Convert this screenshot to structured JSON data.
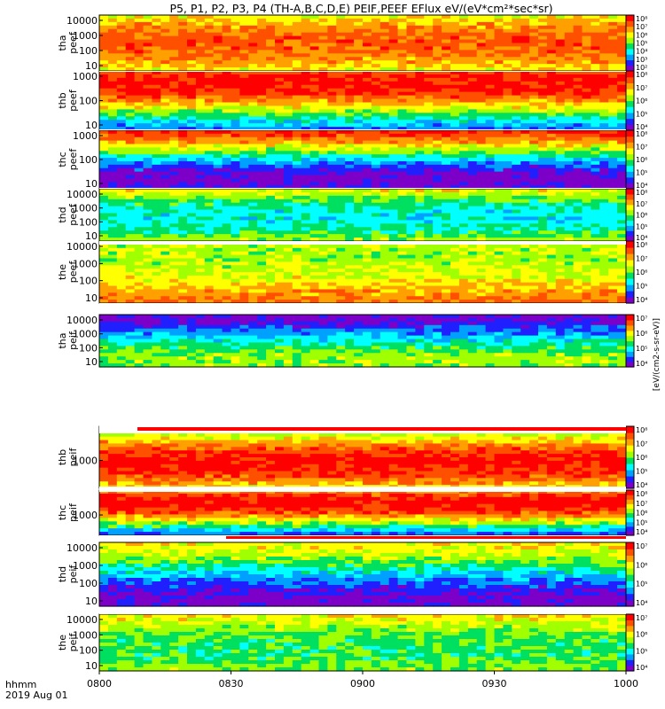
{
  "title": "P5, P1, P2, P3, P4 (TH-A,B,C,D,E) PEIF,PEEF EFlux eV/(eV*cm²*sec*sr)",
  "time_label": "hhmm",
  "date_label": "2019 Aug 01",
  "colorbar_label": "[eV/(cm2-s-sr-eV)]",
  "colors": {
    "spectrum": [
      "#7d00c8",
      "#2020ff",
      "#00a0ff",
      "#00ffff",
      "#00e060",
      "#a0ff00",
      "#ffff00",
      "#ffa000",
      "#ff5000",
      "#ff0000"
    ],
    "fill_stripe": "#ff0000"
  },
  "chart_data": {
    "type": "heatmap",
    "x_axis": {
      "range": [
        "08:00",
        "10:00"
      ],
      "ticks": [
        "0800",
        "0830",
        "0900",
        "0930",
        "1000"
      ]
    },
    "panels": [
      {
        "probe": "tha",
        "product": "peef",
        "ylabel": "tha\npeef",
        "yscale": "log",
        "yticks": [
          "10",
          "100",
          "1000",
          "10000"
        ],
        "colorbar_ticks": [
          "10²",
          "10³",
          "10⁴",
          "10⁵",
          "10⁶",
          "10⁷",
          "10⁸"
        ]
      },
      {
        "probe": "thb",
        "product": "peef",
        "ylabel": "thb\npeef",
        "yscale": "log",
        "yticks": [
          "10",
          "100",
          "1000"
        ],
        "colorbar_ticks": [
          "10⁴",
          "10⁵",
          "10⁶",
          "10⁷",
          "10⁸"
        ]
      },
      {
        "probe": "thc",
        "product": "peef",
        "ylabel": "thc\npeef",
        "yscale": "log",
        "yticks": [
          "10",
          "100",
          "1000"
        ],
        "colorbar_ticks": [
          "10⁴",
          "10⁵",
          "10⁶",
          "10⁷",
          "10⁸"
        ]
      },
      {
        "probe": "thd",
        "product": "peef",
        "ylabel": "thd\npeef",
        "yscale": "log",
        "yticks": [
          "10",
          "100",
          "1000",
          "10000"
        ],
        "colorbar_ticks": [
          "10⁴",
          "10⁵",
          "10⁶",
          "10⁷",
          "10⁸"
        ]
      },
      {
        "probe": "the",
        "product": "peef",
        "ylabel": "the\npeef",
        "yscale": "log",
        "yticks": [
          "10",
          "100",
          "1000",
          "10000"
        ],
        "colorbar_ticks": [
          "10⁴",
          "10⁵",
          "10⁶",
          "10⁷",
          "10⁸"
        ]
      },
      {
        "probe": "tha",
        "product": "peif",
        "ylabel": "tha\npeif",
        "yscale": "log",
        "yticks": [
          "10",
          "100",
          "1000",
          "10000"
        ],
        "colorbar_ticks": [
          "10⁴",
          "10⁵",
          "10⁶",
          "10⁷"
        ]
      },
      {
        "probe": "thb",
        "product": "peif",
        "ylabel": "thb\npeif",
        "yscale": "log",
        "yticks": [
          "1000"
        ],
        "colorbar_ticks": [
          "10⁴",
          "10⁵",
          "10⁶",
          "10⁷",
          "10⁸"
        ]
      },
      {
        "probe": "thc",
        "product": "peif",
        "ylabel": "thc\npeif",
        "yscale": "log",
        "yticks": [
          "1000"
        ],
        "colorbar_ticks": [
          "10⁴",
          "10⁵",
          "10⁶",
          "10⁷",
          "10⁸"
        ]
      },
      {
        "probe": "thd",
        "product": "peif",
        "ylabel": "thd\npeif",
        "yscale": "log",
        "yticks": [
          "10",
          "100",
          "1000",
          "10000"
        ],
        "colorbar_ticks": [
          "10⁴",
          "10⁵",
          "10⁶",
          "10⁷"
        ]
      },
      {
        "probe": "the",
        "product": "peif",
        "ylabel": "the\npeif",
        "yscale": "log",
        "yticks": [
          "10",
          "100",
          "1000",
          "10000"
        ],
        "colorbar_ticks": [
          "10⁴",
          "10⁵",
          "10⁶",
          "10⁷"
        ]
      }
    ]
  }
}
